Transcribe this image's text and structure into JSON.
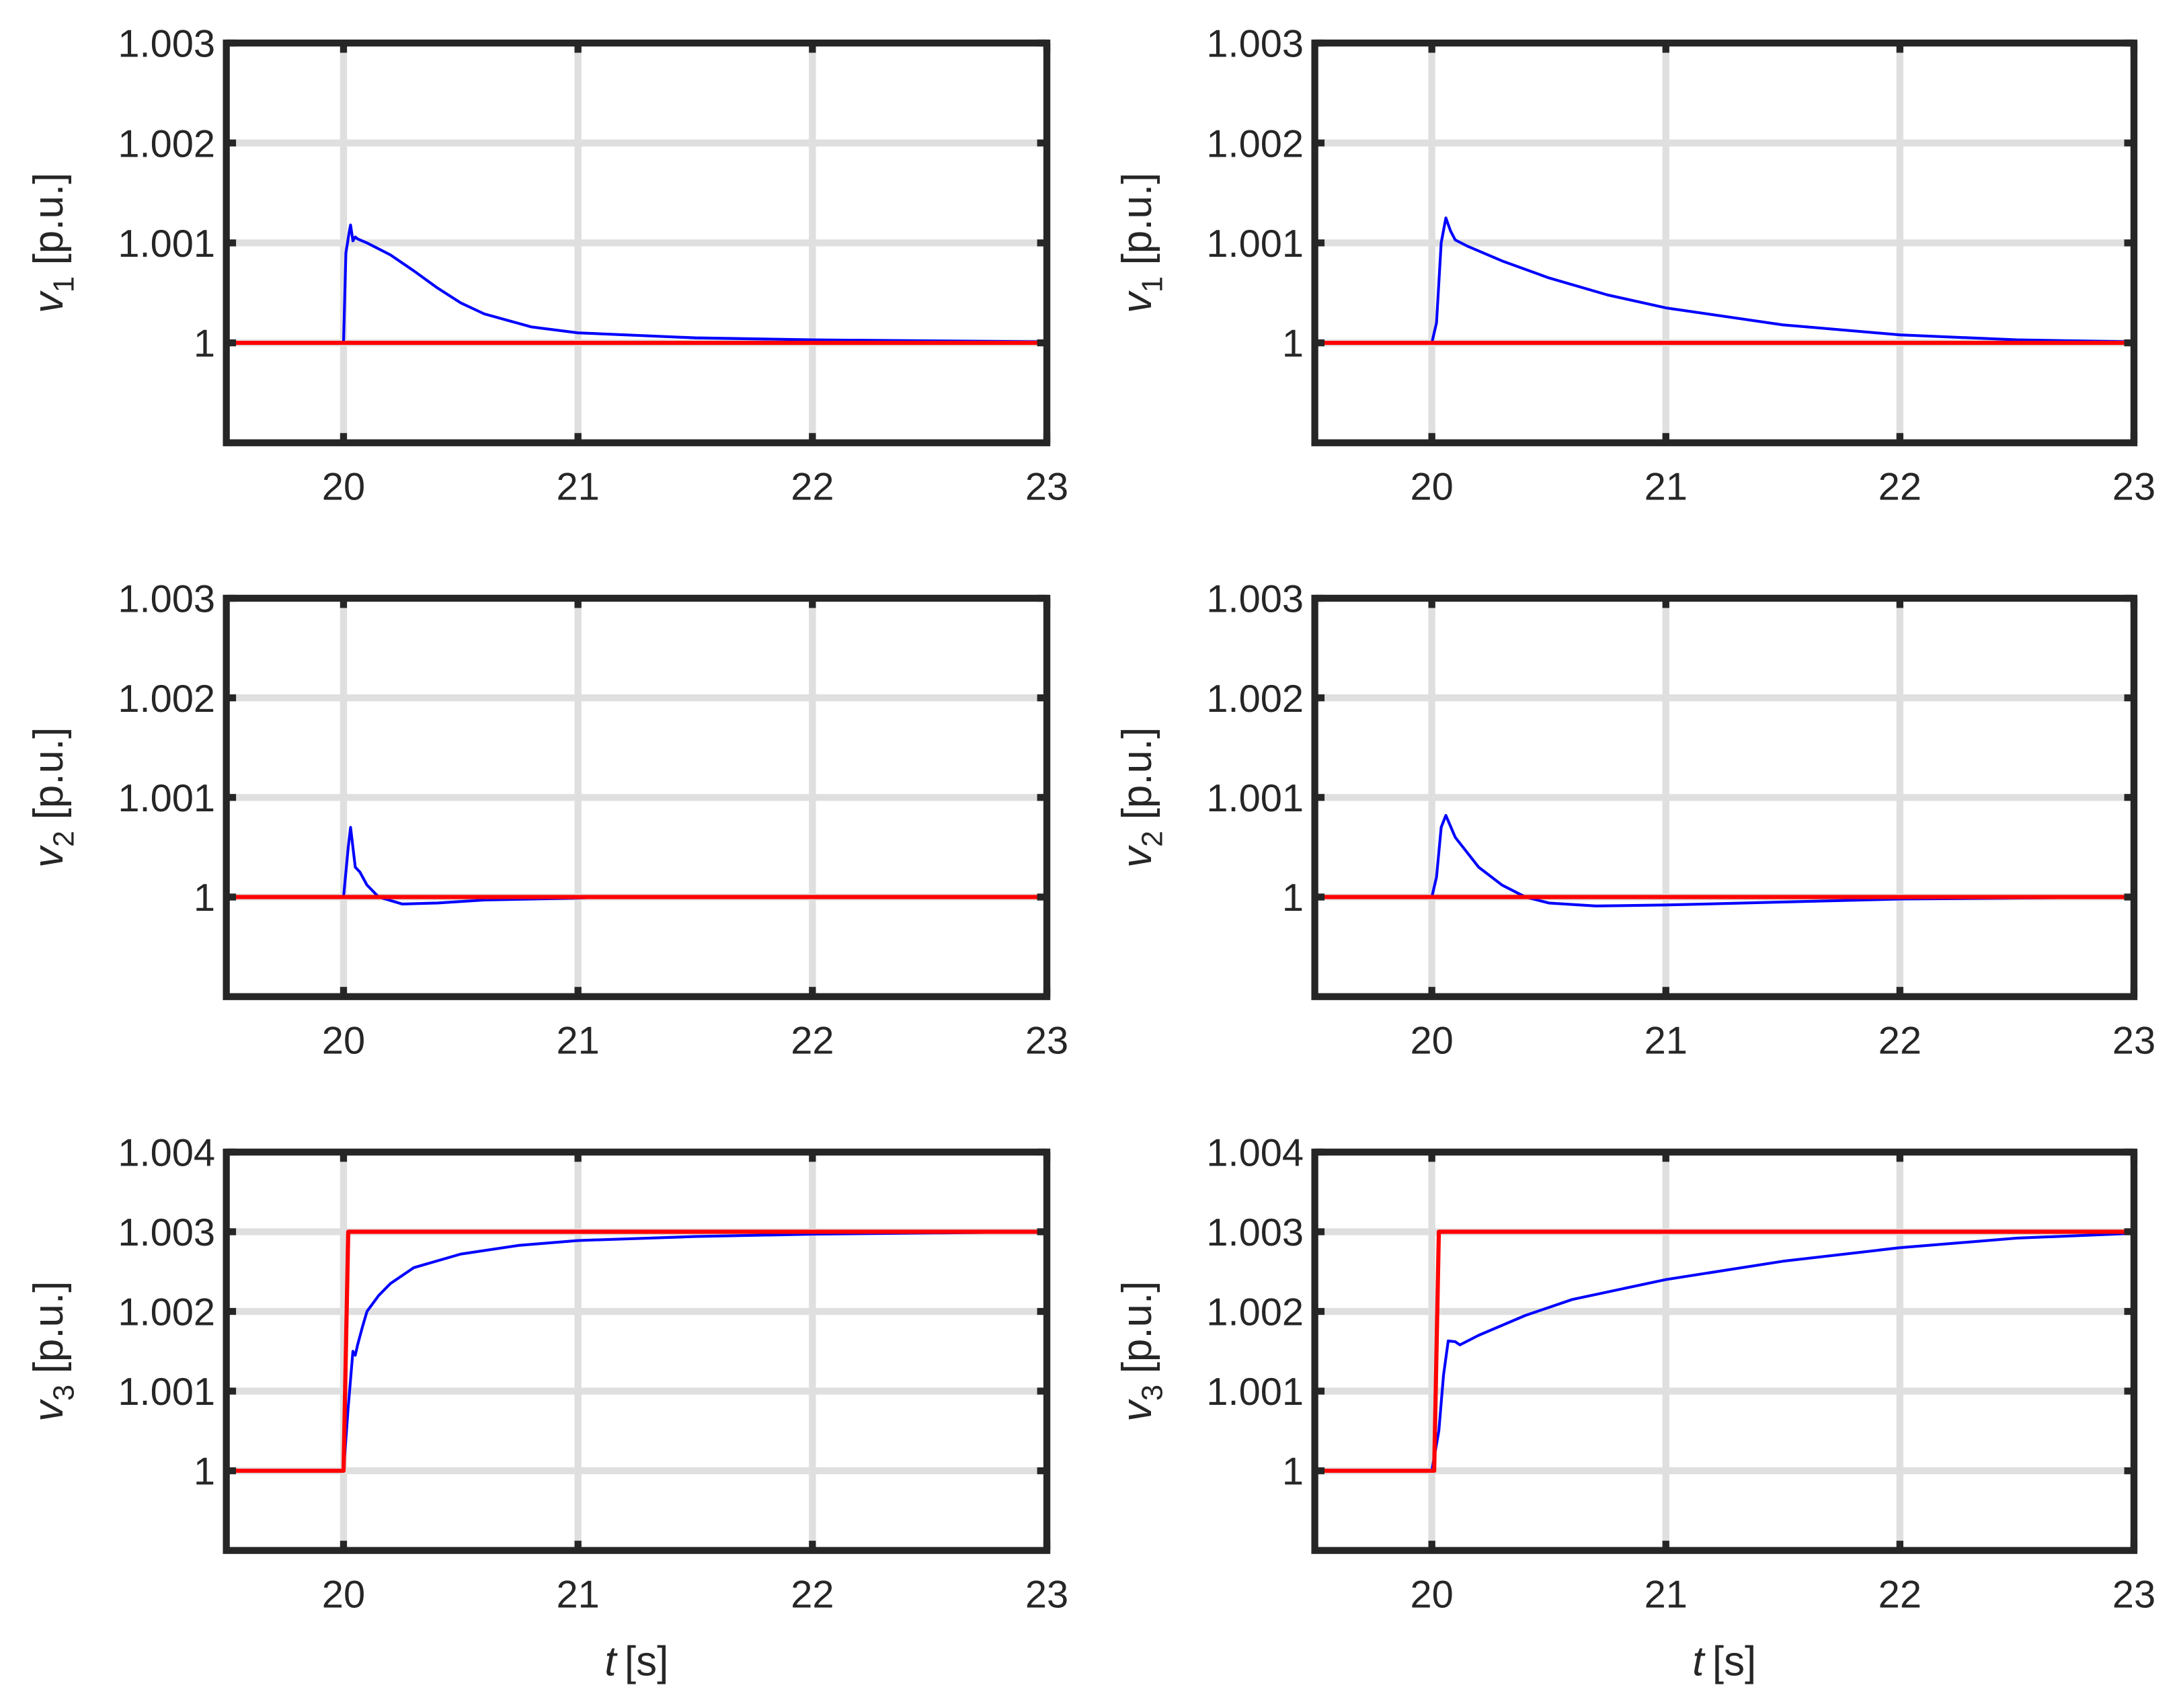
{
  "chart_data": [
    {
      "type": "line",
      "row": 0,
      "col": 0,
      "ylabel_var": "v",
      "ylabel_sub": "1",
      "ylabel_unit": "[p.u.]",
      "xlabel_var": "",
      "xlabel_unit": "",
      "xlim": [
        19.5,
        23
      ],
      "ylim": [
        0.999,
        1.003
      ],
      "xticks": [
        20,
        21,
        22,
        23
      ],
      "yticks": [
        1,
        1.001,
        1.002,
        1.003
      ],
      "xtick_labels": [
        "20",
        "21",
        "22",
        "23"
      ],
      "ytick_labels": [
        "1",
        "1.001",
        "1.002",
        "1.003"
      ],
      "grid": true,
      "series": [
        {
          "color": "#0000ff",
          "x": [
            19.5,
            20,
            20.01,
            20.025,
            20.03,
            20.04,
            20.05,
            20.06,
            20.1,
            20.2,
            20.3,
            20.4,
            20.5,
            20.6,
            20.8,
            21,
            21.5,
            22,
            23
          ],
          "y": [
            1,
            1,
            1.0009,
            1.00112,
            1.00118,
            1.00102,
            1.00106,
            1.00104,
            1.001,
            1.00088,
            1.00072,
            1.00055,
            1.0004,
            1.00029,
            1.00016,
            1.0001,
            1.00005,
            1.00003,
            1.00001
          ]
        },
        {
          "color": "#ff0000",
          "x": [
            19.5,
            23
          ],
          "y": [
            1,
            1
          ]
        }
      ]
    },
    {
      "type": "line",
      "row": 0,
      "col": 1,
      "ylabel_var": "v",
      "ylabel_sub": "1",
      "ylabel_unit": "[p.u.]",
      "xlabel_var": "",
      "xlabel_unit": "",
      "xlim": [
        19.5,
        23
      ],
      "ylim": [
        0.999,
        1.003
      ],
      "xticks": [
        20,
        21,
        22,
        23
      ],
      "yticks": [
        1,
        1.001,
        1.002,
        1.003
      ],
      "xtick_labels": [
        "20",
        "21",
        "22",
        "23"
      ],
      "ytick_labels": [
        "1",
        "1.001",
        "1.002",
        "1.003"
      ],
      "grid": true,
      "series": [
        {
          "color": "#0000ff",
          "x": [
            19.5,
            20,
            20.02,
            20.04,
            20.06,
            20.08,
            20.1,
            20.15,
            20.3,
            20.5,
            20.75,
            21,
            21.5,
            22,
            22.5,
            23
          ],
          "y": [
            1,
            1,
            1.0002,
            1.001,
            1.00125,
            1.00112,
            1.00103,
            1.00097,
            1.00082,
            1.00065,
            1.00048,
            1.00035,
            1.00018,
            1.00008,
            1.00003,
            1.00001
          ]
        },
        {
          "color": "#ff0000",
          "x": [
            19.5,
            23
          ],
          "y": [
            1,
            1
          ]
        }
      ]
    },
    {
      "type": "line",
      "row": 1,
      "col": 0,
      "ylabel_var": "v",
      "ylabel_sub": "2",
      "ylabel_unit": "[p.u.]",
      "xlabel_var": "",
      "xlabel_unit": "",
      "xlim": [
        19.5,
        23
      ],
      "ylim": [
        0.999,
        1.003
      ],
      "xticks": [
        20,
        21,
        22,
        23
      ],
      "yticks": [
        1,
        1.001,
        1.002,
        1.003
      ],
      "xtick_labels": [
        "20",
        "21",
        "22",
        "23"
      ],
      "ytick_labels": [
        "1",
        "1.001",
        "1.002",
        "1.003"
      ],
      "grid": true,
      "series": [
        {
          "color": "#0000ff",
          "x": [
            19.5,
            20,
            20.02,
            20.03,
            20.05,
            20.07,
            20.1,
            20.15,
            20.25,
            20.4,
            20.6,
            21,
            21.1,
            23
          ],
          "y": [
            1,
            1,
            1.0005,
            1.0007,
            1.0003,
            1.00025,
            1.00012,
            1.0,
            0.99993,
            0.99994,
            0.99997,
            0.99999,
            1,
            1
          ]
        },
        {
          "color": "#ff0000",
          "x": [
            19.5,
            23
          ],
          "y": [
            1,
            1
          ]
        }
      ]
    },
    {
      "type": "line",
      "row": 1,
      "col": 1,
      "ylabel_var": "v",
      "ylabel_sub": "2",
      "ylabel_unit": "[p.u.]",
      "xlabel_var": "",
      "xlabel_unit": "",
      "xlim": [
        19.5,
        23
      ],
      "ylim": [
        0.999,
        1.003
      ],
      "xticks": [
        20,
        21,
        22,
        23
      ],
      "yticks": [
        1,
        1.001,
        1.002,
        1.003
      ],
      "xtick_labels": [
        "20",
        "21",
        "22",
        "23"
      ],
      "ytick_labels": [
        "1",
        "1.001",
        "1.002",
        "1.003"
      ],
      "grid": true,
      "series": [
        {
          "color": "#0000ff",
          "x": [
            19.5,
            20,
            20.02,
            20.04,
            20.06,
            20.1,
            20.2,
            20.3,
            20.4,
            20.5,
            20.7,
            21,
            21.5,
            22,
            23
          ],
          "y": [
            1,
            1,
            1.0002,
            1.0007,
            1.00082,
            1.0006,
            1.0003,
            1.00012,
            1.0,
            0.99994,
            0.99991,
            0.99992,
            0.99995,
            0.99998,
            1
          ]
        },
        {
          "color": "#ff0000",
          "x": [
            19.5,
            23
          ],
          "y": [
            1,
            1
          ]
        }
      ]
    },
    {
      "type": "line",
      "row": 2,
      "col": 0,
      "ylabel_var": "v",
      "ylabel_sub": "3",
      "ylabel_unit": "[p.u.]",
      "xlabel_var": "t",
      "xlabel_unit": "[s]",
      "xlim": [
        19.5,
        23
      ],
      "ylim": [
        0.999,
        1.004
      ],
      "xticks": [
        20,
        21,
        22,
        23
      ],
      "yticks": [
        1,
        1.001,
        1.002,
        1.003,
        1.004
      ],
      "xtick_labels": [
        "20",
        "21",
        "22",
        "23"
      ],
      "ytick_labels": [
        "1",
        "1.001",
        "1.002",
        "1.003",
        "1.004"
      ],
      "grid": true,
      "series": [
        {
          "color": "#0000ff",
          "x": [
            19.5,
            20,
            20.02,
            20.04,
            20.05,
            20.06,
            20.08,
            20.1,
            20.15,
            20.2,
            20.3,
            20.5,
            20.75,
            21,
            21.5,
            22,
            23
          ],
          "y": [
            1,
            1,
            1.0008,
            1.0015,
            1.00145,
            1.00158,
            1.0018,
            1.002,
            1.0022,
            1.00235,
            1.00255,
            1.00272,
            1.00283,
            1.00289,
            1.00294,
            1.00297,
            1.003
          ]
        },
        {
          "color": "#ff0000",
          "x": [
            19.5,
            20,
            20.02,
            23
          ],
          "y": [
            1,
            1,
            1.003,
            1.003
          ]
        }
      ]
    },
    {
      "type": "line",
      "row": 2,
      "col": 1,
      "ylabel_var": "v",
      "ylabel_sub": "3",
      "ylabel_unit": "[p.u.]",
      "xlabel_var": "t",
      "xlabel_unit": "[s]",
      "xlim": [
        19.5,
        23
      ],
      "ylim": [
        0.999,
        1.004
      ],
      "xticks": [
        20,
        21,
        22,
        23
      ],
      "yticks": [
        1,
        1.001,
        1.002,
        1.003,
        1.004
      ],
      "xtick_labels": [
        "20",
        "21",
        "22",
        "23"
      ],
      "ytick_labels": [
        "1",
        "1.001",
        "1.002",
        "1.003",
        "1.004"
      ],
      "grid": true,
      "series": [
        {
          "color": "#0000ff",
          "x": [
            19.5,
            20,
            20.03,
            20.05,
            20.07,
            20.1,
            20.12,
            20.2,
            20.4,
            20.6,
            21,
            21.5,
            22,
            22.5,
            23
          ],
          "y": [
            1,
            1,
            1.0005,
            1.0012,
            1.00163,
            1.00162,
            1.00158,
            1.0017,
            1.00195,
            1.00215,
            1.0024,
            1.00263,
            1.0028,
            1.00292,
            1.00298
          ]
        },
        {
          "color": "#ff0000",
          "x": [
            19.5,
            20.01,
            20.03,
            23
          ],
          "y": [
            1,
            1,
            1.003,
            1.003
          ]
        }
      ]
    }
  ],
  "colors": {
    "axes": "#262626",
    "grid": "#dfdfdf",
    "series_1": "#0000ff",
    "series_2": "#ff0000"
  }
}
